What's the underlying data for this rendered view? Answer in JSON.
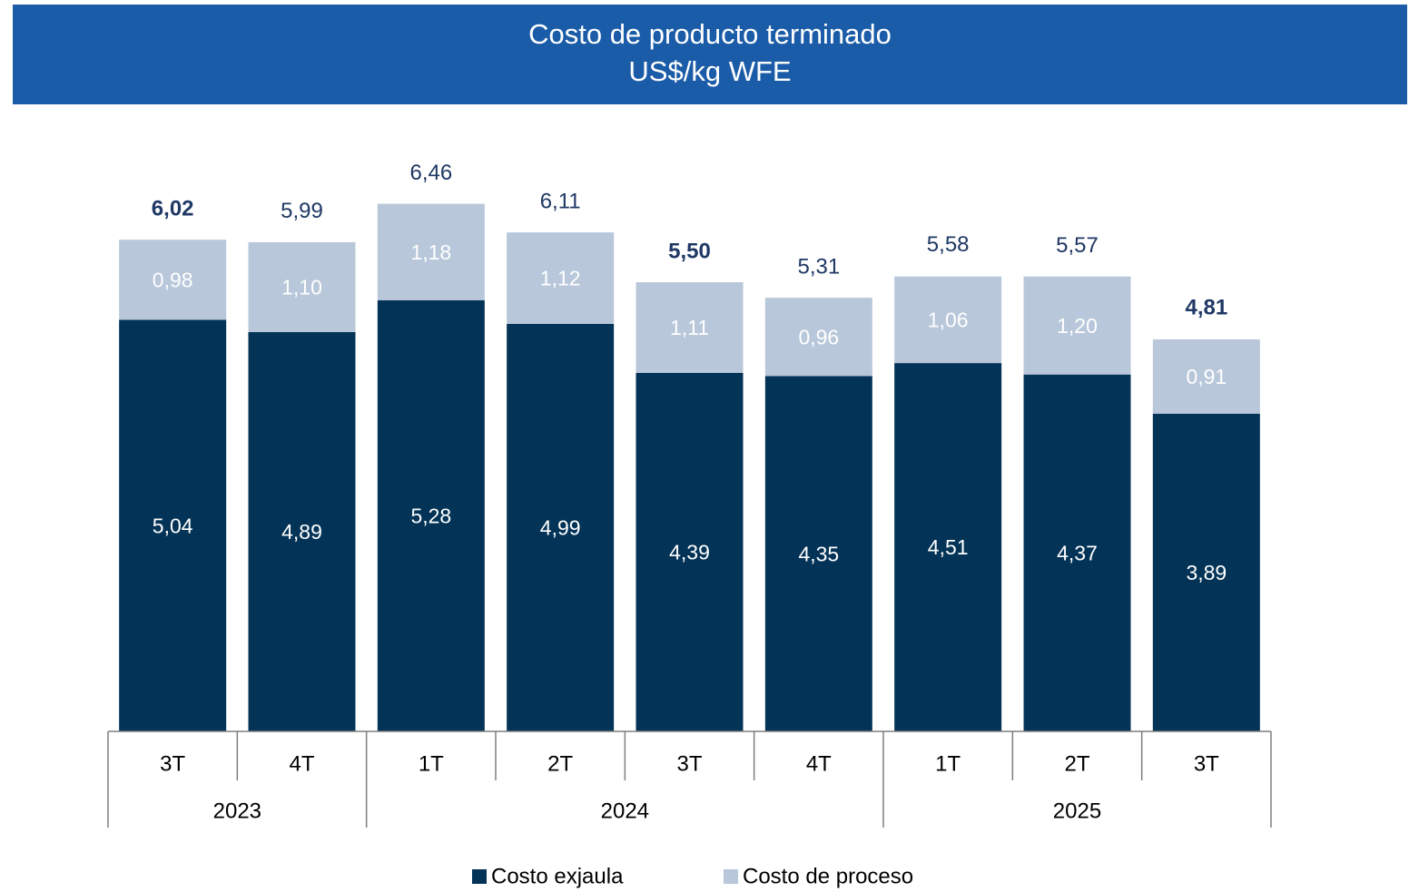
{
  "chart_data": {
    "type": "stacked_bar",
    "title": "Costo de producto terminado",
    "subtitle": "US$/kg WFE",
    "categories": [
      [
        "3T",
        "2023"
      ],
      [
        "4T",
        "2023"
      ],
      [
        "1T",
        "2024"
      ],
      [
        "2T",
        "2024"
      ],
      [
        "3T",
        "2024"
      ],
      [
        "4T",
        "2024"
      ],
      [
        "1T",
        "2025"
      ],
      [
        "2T",
        "2025"
      ],
      [
        "3T",
        "2025"
      ]
    ],
    "series": [
      {
        "name": "Costo exjaula",
        "color": "#033356",
        "values": [
          5.04,
          4.89,
          5.28,
          4.99,
          4.39,
          4.35,
          4.51,
          4.37,
          3.89
        ],
        "value_labels": [
          "5,04",
          "4,89",
          "5,28",
          "4,99",
          "4,39",
          "4,35",
          "4,51",
          "4,37",
          "3,89"
        ]
      },
      {
        "name": "Costo de proceso",
        "color": "#b8c7da",
        "values": [
          0.98,
          1.1,
          1.18,
          1.12,
          1.11,
          0.96,
          1.06,
          1.2,
          0.91
        ],
        "value_labels": [
          "0,98",
          "1,10",
          "1,18",
          "1,12",
          "1,11",
          "0,96",
          "1,06",
          "1,20",
          "0,91"
        ]
      }
    ],
    "totals": [
      6.02,
      5.99,
      6.46,
      6.11,
      5.5,
      5.31,
      5.58,
      5.57,
      4.81
    ],
    "total_labels": [
      "6,02",
      "5,99",
      "6,46",
      "6,11",
      "5,50",
      "5,31",
      "5,58",
      "5,57",
      "4,81"
    ],
    "total_bold": [
      true,
      false,
      false,
      false,
      true,
      false,
      false,
      false,
      true
    ],
    "ylim": [
      0,
      7
    ],
    "legend": "bottom"
  }
}
